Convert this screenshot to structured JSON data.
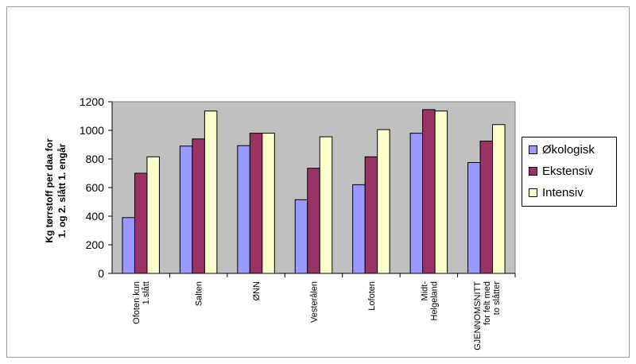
{
  "chart_data": {
    "type": "bar",
    "categories": [
      [
        "Ofoten  kun",
        "1.slått"
      ],
      [
        "Salten"
      ],
      [
        "ØNN"
      ],
      [
        "Vesterålen"
      ],
      [
        "Lofoten"
      ],
      [
        "Midt-",
        "Helgeland"
      ],
      [
        "GJENNOMSNITT",
        "for felt med",
        "to slåtter"
      ]
    ],
    "series": [
      {
        "name": "Økologisk",
        "color": "#9999ff",
        "values": [
          390,
          890,
          893,
          515,
          620,
          980,
          775
        ]
      },
      {
        "name": "Ekstensiv",
        "color": "#993366",
        "values": [
          700,
          940,
          980,
          735,
          815,
          1145,
          925
        ]
      },
      {
        "name": "Intensiv",
        "color": "#ffffcc",
        "values": [
          815,
          1135,
          980,
          955,
          1005,
          1135,
          1040
        ]
      }
    ],
    "ylabel": [
      "Kg tørrstoff per daa for",
      "1. og 2. slått 1. engår"
    ],
    "yticks": [
      "0",
      "200",
      "400",
      "600",
      "800",
      "1000",
      "1200"
    ],
    "ylim": [
      0,
      1200
    ],
    "plot_background": "#c0c0c0",
    "grid": false,
    "legend_position": "right"
  }
}
